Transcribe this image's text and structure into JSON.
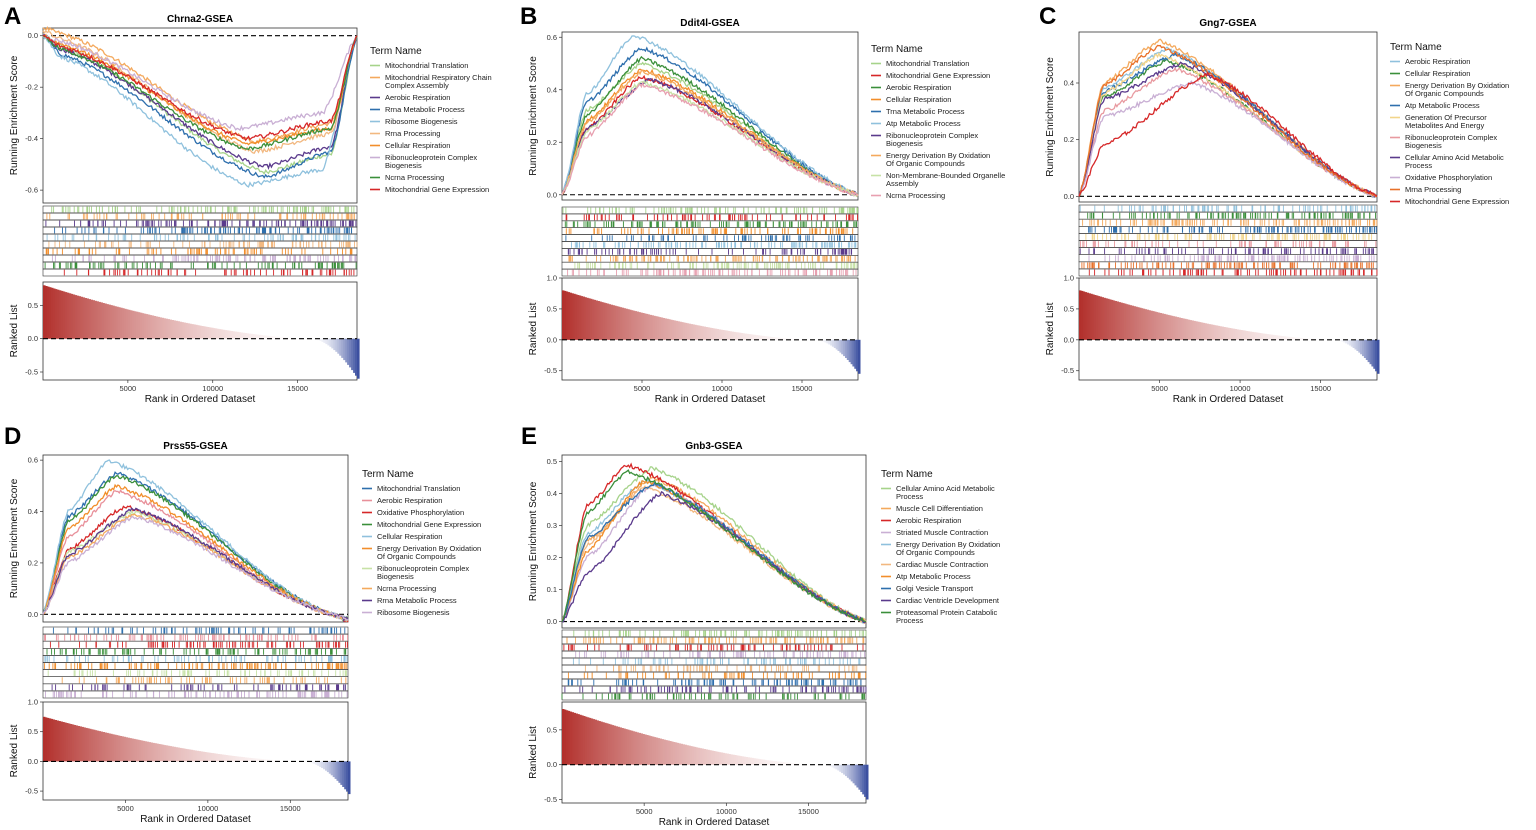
{
  "figure": {
    "x_axis_label": "Rank in Ordered Dataset",
    "y_axis_top_label": "Running Enrichment Score",
    "y_axis_bottom_label": "Ranked List",
    "legend_title": "Term Name",
    "x_ticks": [
      5000,
      10000,
      15000
    ],
    "ranked_ticks": [
      1.0,
      0.5,
      0.0,
      -0.5
    ]
  },
  "chart_data": [
    {
      "panel": "A",
      "type": "line",
      "title": "Chrna2-GSEA",
      "x_max": 18500,
      "ylim": [
        -0.65,
        0.03
      ],
      "y_ticks": [
        0.0,
        -0.2,
        -0.4,
        -0.6
      ],
      "ranked_ylim": [
        -0.62,
        0.85
      ],
      "ranked_ticks": [
        0.5,
        0.0,
        -0.5
      ],
      "ranked_start": 0.8,
      "ranked_end": -0.6,
      "series": [
        {
          "name": "Mitochondrial Translation",
          "color": "#a6d38a",
          "x": [
            0,
            1000,
            13000,
            17000,
            18500
          ],
          "y": [
            0.0,
            -0.04,
            -0.53,
            -0.46,
            0.0
          ]
        },
        {
          "name": "Mitochondrial Respiratory Chain Complex Assembly",
          "color": "#f4a95d",
          "x": [
            0,
            1000,
            12500,
            17000,
            18500
          ],
          "y": [
            0.03,
            0.01,
            -0.41,
            -0.34,
            0.0
          ]
        },
        {
          "name": "Aerobic Respiration",
          "color": "#5a3a8c",
          "x": [
            0,
            1000,
            13000,
            17000,
            18500
          ],
          "y": [
            0.0,
            -0.05,
            -0.51,
            -0.43,
            0.0
          ]
        },
        {
          "name": "Rrna Metabolic Process",
          "color": "#2e6fad",
          "x": [
            0,
            1000,
            13000,
            17000,
            18500
          ],
          "y": [
            0.0,
            -0.07,
            -0.55,
            -0.45,
            0.0
          ]
        },
        {
          "name": "Ribosome Biogenesis",
          "color": "#8fc1dd",
          "x": [
            0,
            1000,
            12000,
            16500,
            18500
          ],
          "y": [
            0.0,
            -0.08,
            -0.58,
            -0.52,
            0.0
          ]
        },
        {
          "name": "Rrna Processing",
          "color": "#f2b880",
          "x": [
            0,
            1000,
            12500,
            17000,
            18500
          ],
          "y": [
            0.02,
            -0.01,
            -0.45,
            -0.38,
            0.0
          ]
        },
        {
          "name": "Cellular Respiration",
          "color": "#f28e2b",
          "x": [
            0,
            1000,
            12000,
            17000,
            18500
          ],
          "y": [
            0.0,
            -0.03,
            -0.42,
            -0.36,
            0.0
          ]
        },
        {
          "name": "Ribonucleoprotein Complex Biogenesis",
          "color": "#c9afd4",
          "x": [
            0,
            1000,
            11500,
            16500,
            18500
          ],
          "y": [
            0.0,
            -0.02,
            -0.36,
            -0.3,
            0.0
          ]
        },
        {
          "name": "Ncrna Processing",
          "color": "#3a8f3a",
          "x": [
            0,
            1000,
            12000,
            17000,
            18500
          ],
          "y": [
            0.0,
            -0.05,
            -0.44,
            -0.36,
            0.0
          ]
        },
        {
          "name": "Mitochondrial Gene Expression",
          "color": "#d62728",
          "x": [
            0,
            1000,
            12000,
            17000,
            18500
          ],
          "y": [
            0.0,
            -0.04,
            -0.4,
            -0.33,
            0.0
          ]
        }
      ]
    },
    {
      "panel": "B",
      "type": "line",
      "title": "Ddit4l-GSEA",
      "x_max": 18500,
      "ylim": [
        -0.02,
        0.62
      ],
      "y_ticks": [
        0.0,
        0.2,
        0.4,
        0.6
      ],
      "ranked_ylim": [
        -0.65,
        1.0
      ],
      "ranked_ticks": [
        1.0,
        0.5,
        0.0,
        -0.5
      ],
      "ranked_start": 0.8,
      "ranked_end": -0.55,
      "series": [
        {
          "name": "Mitochondrial Translation",
          "color": "#a6d38a",
          "x": [
            0,
            1500,
            5000,
            18500
          ],
          "y": [
            0.0,
            0.32,
            0.5,
            0.0
          ]
        },
        {
          "name": "Mitochondrial Gene Expression",
          "color": "#d62728",
          "x": [
            0,
            1500,
            5000,
            18500
          ],
          "y": [
            0.0,
            0.25,
            0.45,
            0.0
          ]
        },
        {
          "name": "Aerobic Respiration",
          "color": "#3a8f3a",
          "x": [
            0,
            1500,
            5000,
            18500
          ],
          "y": [
            0.0,
            0.3,
            0.52,
            0.0
          ]
        },
        {
          "name": "Cellular Respiration",
          "color": "#f28e2b",
          "x": [
            0,
            1500,
            5000,
            18500
          ],
          "y": [
            0.0,
            0.28,
            0.48,
            0.0
          ]
        },
        {
          "name": "Trna Metabolic Process",
          "color": "#2e6fad",
          "x": [
            0,
            1500,
            5000,
            18500
          ],
          "y": [
            0.0,
            0.35,
            0.56,
            0.0
          ]
        },
        {
          "name": "Atp Metabolic Process",
          "color": "#8fc1dd",
          "x": [
            0,
            1500,
            4500,
            18500
          ],
          "y": [
            0.0,
            0.38,
            0.61,
            0.0
          ]
        },
        {
          "name": "Ribonucleoprotein Complex Biogenesis",
          "color": "#5a3a8c",
          "x": [
            0,
            1500,
            5500,
            18500
          ],
          "y": [
            0.0,
            0.25,
            0.44,
            0.0
          ]
        },
        {
          "name": "Energy Derivation By Oxidation Of Organic Compounds",
          "color": "#f4a95d",
          "x": [
            0,
            1500,
            5000,
            18500
          ],
          "y": [
            0.0,
            0.27,
            0.47,
            0.0
          ]
        },
        {
          "name": "Non-Membrane-Bounded Organelle Assembly",
          "color": "#c7e2a6",
          "x": [
            0,
            1500,
            5000,
            18500
          ],
          "y": [
            0.0,
            0.24,
            0.43,
            0.0
          ]
        },
        {
          "name": "Ncrna Processing",
          "color": "#e8a0b0",
          "x": [
            0,
            1500,
            5000,
            18500
          ],
          "y": [
            0.0,
            0.22,
            0.42,
            0.0
          ]
        }
      ]
    },
    {
      "panel": "C",
      "type": "line",
      "title": "Gng7-GSEA",
      "x_max": 18500,
      "ylim": [
        -0.02,
        0.58
      ],
      "y_ticks": [
        0.0,
        0.2,
        0.4
      ],
      "ranked_ylim": [
        -0.65,
        1.0
      ],
      "ranked_ticks": [
        1.0,
        0.5,
        0.0,
        -0.5
      ],
      "ranked_start": 0.8,
      "ranked_end": -0.55,
      "series": [
        {
          "name": "Aerobic Respiration",
          "color": "#8fc1dd",
          "x": [
            0,
            1500,
            5500,
            18500
          ],
          "y": [
            0.0,
            0.38,
            0.52,
            0.0
          ]
        },
        {
          "name": "Cellular Respiration",
          "color": "#3a8f3a",
          "x": [
            0,
            1500,
            5500,
            18500
          ],
          "y": [
            0.0,
            0.35,
            0.48,
            0.0
          ]
        },
        {
          "name": "Energy Derivation By Oxidation Of Organic Compounds",
          "color": "#f4a95d",
          "x": [
            0,
            1500,
            5000,
            18500
          ],
          "y": [
            0.0,
            0.4,
            0.55,
            0.0
          ]
        },
        {
          "name": "Atp Metabolic Process",
          "color": "#2e6fad",
          "x": [
            0,
            1500,
            6000,
            18500
          ],
          "y": [
            0.0,
            0.37,
            0.5,
            0.0
          ]
        },
        {
          "name": "Generation Of Precursor Metabolites And Energy",
          "color": "#f2d58a",
          "x": [
            0,
            1500,
            5000,
            18500
          ],
          "y": [
            0.0,
            0.36,
            0.5,
            0.0
          ]
        },
        {
          "name": "Ribonucleoprotein Complex Biogenesis",
          "color": "#e89aa0",
          "x": [
            0,
            1500,
            6000,
            18500
          ],
          "y": [
            0.0,
            0.3,
            0.45,
            0.0
          ]
        },
        {
          "name": "Cellular Amino Acid Metabolic Process",
          "color": "#5a3a8c",
          "x": [
            0,
            1500,
            6500,
            18500
          ],
          "y": [
            0.0,
            0.34,
            0.47,
            0.0
          ]
        },
        {
          "name": "Oxidative Phosphorylation",
          "color": "#c9afd4",
          "x": [
            0,
            1500,
            7000,
            18500
          ],
          "y": [
            0.0,
            0.28,
            0.4,
            0.0
          ]
        },
        {
          "name": "Mrna Processing",
          "color": "#e8712a",
          "x": [
            0,
            1500,
            5000,
            18500
          ],
          "y": [
            0.0,
            0.39,
            0.53,
            0.0
          ]
        },
        {
          "name": "Mitochondrial Gene Expression",
          "color": "#d62728",
          "x": [
            0,
            1500,
            8000,
            18500
          ],
          "y": [
            0.0,
            0.18,
            0.43,
            0.0
          ]
        }
      ]
    },
    {
      "panel": "D",
      "type": "line",
      "title": "Prss55-GSEA",
      "x_max": 18500,
      "ylim": [
        -0.03,
        0.62
      ],
      "y_ticks": [
        0.0,
        0.2,
        0.4,
        0.6
      ],
      "ranked_ylim": [
        -0.65,
        1.0
      ],
      "ranked_ticks": [
        1.0,
        0.5,
        0.0,
        -0.5
      ],
      "ranked_start": 0.75,
      "ranked_end": -0.55,
      "series": [
        {
          "name": "Mitochondrial Translation",
          "color": "#2e6fad",
          "x": [
            0,
            1500,
            4500,
            17500,
            18500
          ],
          "y": [
            0.0,
            0.38,
            0.55,
            0.0,
            -0.02
          ]
        },
        {
          "name": "Aerobic Respiration",
          "color": "#e8909a",
          "x": [
            0,
            1500,
            4500,
            17500,
            18500
          ],
          "y": [
            0.0,
            0.3,
            0.48,
            0.0,
            -0.02
          ]
        },
        {
          "name": "Oxidative Phosphorylation",
          "color": "#d62728",
          "x": [
            0,
            1500,
            5000,
            17500,
            18500
          ],
          "y": [
            0.0,
            0.25,
            0.42,
            0.0,
            -0.03
          ]
        },
        {
          "name": "Mitochondrial Gene Expression",
          "color": "#3a8f3a",
          "x": [
            0,
            1500,
            4500,
            17500,
            18500
          ],
          "y": [
            0.0,
            0.36,
            0.54,
            0.0,
            -0.02
          ]
        },
        {
          "name": "Cellular Respiration",
          "color": "#8fc1dd",
          "x": [
            0,
            1500,
            4000,
            17500,
            18500
          ],
          "y": [
            0.0,
            0.4,
            0.6,
            0.0,
            -0.02
          ]
        },
        {
          "name": "Energy Derivation By Oxidation Of Organic Compounds",
          "color": "#f28e2b",
          "x": [
            0,
            1500,
            4500,
            17500,
            18500
          ],
          "y": [
            0.0,
            0.33,
            0.5,
            0.0,
            -0.02
          ]
        },
        {
          "name": "Ribonucleoprotein Complex Biogenesis",
          "color": "#c7e2a6",
          "x": [
            0,
            1500,
            5500,
            17500,
            18500
          ],
          "y": [
            0.0,
            0.24,
            0.4,
            0.0,
            -0.02
          ]
        },
        {
          "name": "Ncrna Processing",
          "color": "#f4a95d",
          "x": [
            0,
            1500,
            5500,
            17500,
            18500
          ],
          "y": [
            0.0,
            0.22,
            0.39,
            0.0,
            -0.02
          ]
        },
        {
          "name": "Rrna Metabolic Process",
          "color": "#5a3a8c",
          "x": [
            0,
            1500,
            5500,
            17500,
            18500
          ],
          "y": [
            0.0,
            0.23,
            0.41,
            0.0,
            -0.02
          ]
        },
        {
          "name": "Ribosome Biogenesis",
          "color": "#c9afd4",
          "x": [
            0,
            1500,
            5500,
            17500,
            18500
          ],
          "y": [
            0.0,
            0.2,
            0.38,
            0.0,
            -0.02
          ]
        }
      ]
    },
    {
      "panel": "E",
      "type": "line",
      "title": "Gnb3-GSEA",
      "x_max": 18500,
      "ylim": [
        -0.02,
        0.52
      ],
      "y_ticks": [
        0.0,
        0.1,
        0.2,
        0.3,
        0.4,
        0.5
      ],
      "ranked_ylim": [
        -0.55,
        0.9
      ],
      "ranked_ticks": [
        0.5,
        0.0,
        -0.5
      ],
      "ranked_start": 0.8,
      "ranked_end": -0.5,
      "series": [
        {
          "name": "Cellular Amino Acid Metabolic Process",
          "color": "#a6d38a",
          "x": [
            0,
            1500,
            5500,
            18500
          ],
          "y": [
            0.0,
            0.3,
            0.48,
            0.0
          ]
        },
        {
          "name": "Muscle Cell Differentiation",
          "color": "#f4a95d",
          "x": [
            0,
            1500,
            5500,
            18500
          ],
          "y": [
            0.0,
            0.25,
            0.45,
            0.0
          ]
        },
        {
          "name": "Aerobic Respiration",
          "color": "#d62728",
          "x": [
            0,
            1500,
            4000,
            18500
          ],
          "y": [
            0.0,
            0.36,
            0.49,
            0.0
          ]
        },
        {
          "name": "Striated Muscle Contraction",
          "color": "#c9afd4",
          "x": [
            0,
            1500,
            5500,
            18500
          ],
          "y": [
            0.0,
            0.2,
            0.43,
            0.0
          ]
        },
        {
          "name": "Energy Derivation By Oxidation Of Organic Compounds",
          "color": "#8fc1dd",
          "x": [
            0,
            1500,
            5000,
            18500
          ],
          "y": [
            0.0,
            0.27,
            0.44,
            0.0
          ]
        },
        {
          "name": "Cardiac Muscle Contraction",
          "color": "#f2b880",
          "x": [
            0,
            1500,
            5000,
            18500
          ],
          "y": [
            0.0,
            0.24,
            0.42,
            0.0
          ]
        },
        {
          "name": "Atp Metabolic Process",
          "color": "#f28e2b",
          "x": [
            0,
            1500,
            5000,
            18500
          ],
          "y": [
            0.0,
            0.22,
            0.44,
            0.0
          ]
        },
        {
          "name": "Golgi Vesicle Transport",
          "color": "#2e6fad",
          "x": [
            0,
            1500,
            5500,
            18500
          ],
          "y": [
            0.0,
            0.26,
            0.43,
            0.0
          ]
        },
        {
          "name": "Cardiac Ventricle Development",
          "color": "#5a3a8c",
          "x": [
            0,
            1500,
            6000,
            18500
          ],
          "y": [
            0.0,
            0.15,
            0.4,
            0.0
          ]
        },
        {
          "name": "Proteasomal Protein Catabolic Process",
          "color": "#3a8f3a",
          "x": [
            0,
            1500,
            4000,
            18500
          ],
          "y": [
            0.0,
            0.34,
            0.47,
            0.0
          ]
        }
      ]
    }
  ]
}
